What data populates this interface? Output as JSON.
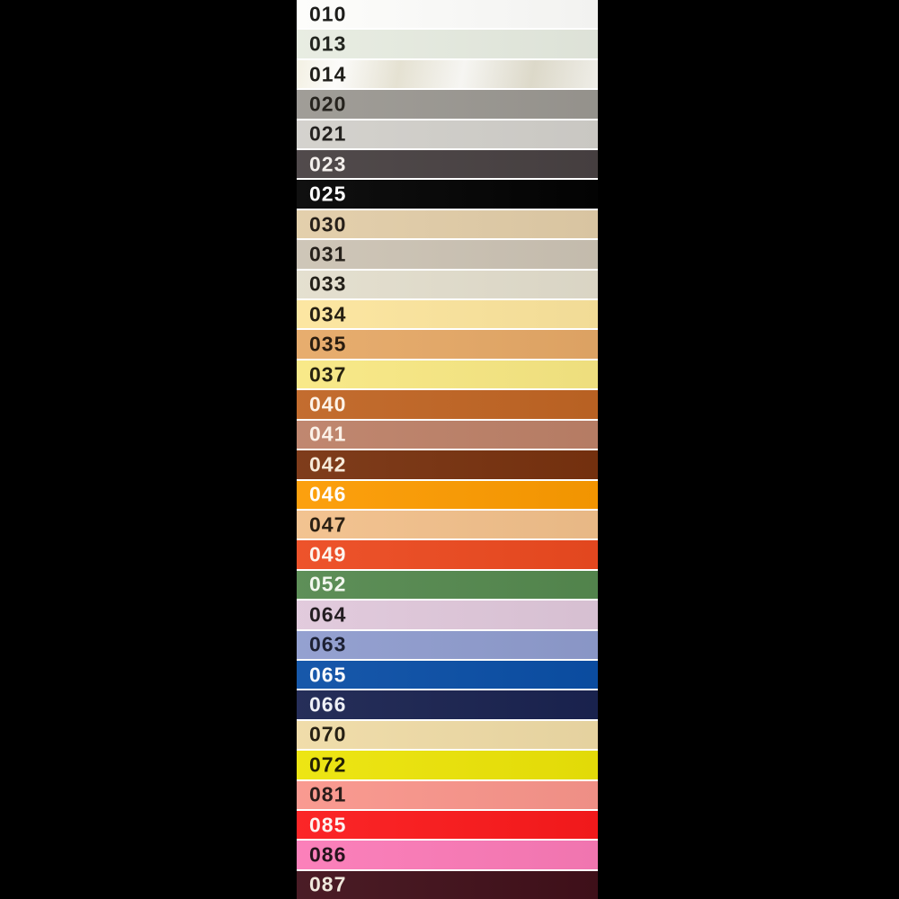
{
  "background_color": "#000000",
  "separator_color": "#ffffff",
  "palette": {
    "description": "color-swatch-card",
    "rows": [
      {
        "code": "010",
        "fill": "#fdfdfb",
        "label_color": "#1d1d1b",
        "sheen": false
      },
      {
        "code": "013",
        "fill": "#e7ece1",
        "label_color": "#22251f",
        "sheen": false
      },
      {
        "code": "014",
        "fill": "#f3f0e2",
        "label_color": "#201f1a",
        "sheen": true
      },
      {
        "code": "020",
        "fill": "#9b9892",
        "label_color": "#26231e",
        "sheen": false
      },
      {
        "code": "021",
        "fill": "#d2d0cb",
        "label_color": "#242220",
        "sheen": false
      },
      {
        "code": "023",
        "fill": "#484142",
        "label_color": "#f3efec",
        "sheen": false
      },
      {
        "code": "025",
        "fill": "#030303",
        "label_color": "#ffffff",
        "sheen": false
      },
      {
        "code": "030",
        "fill": "#e2cda8",
        "label_color": "#272019",
        "sheen": false
      },
      {
        "code": "031",
        "fill": "#ccc3b4",
        "label_color": "#26211b",
        "sheen": false
      },
      {
        "code": "033",
        "fill": "#e3decd",
        "label_color": "#232019",
        "sheen": false
      },
      {
        "code": "034",
        "fill": "#fce59d",
        "label_color": "#262013",
        "sheen": false
      },
      {
        "code": "035",
        "fill": "#e6a967",
        "label_color": "#2b1d10",
        "sheen": false
      },
      {
        "code": "037",
        "fill": "#f8e883",
        "label_color": "#272310",
        "sheen": false
      },
      {
        "code": "040",
        "fill": "#c06524",
        "label_color": "#fdf3e8",
        "sheen": false
      },
      {
        "code": "041",
        "fill": "#bd8168",
        "label_color": "#fbf1e8",
        "sheen": false
      },
      {
        "code": "042",
        "fill": "#78320f",
        "label_color": "#f6ead9",
        "sheen": false
      },
      {
        "code": "046",
        "fill": "#fc9b01",
        "label_color": "#fefefb",
        "sheen": false
      },
      {
        "code": "047",
        "fill": "#f2c08b",
        "label_color": "#2b2014",
        "sheen": false
      },
      {
        "code": "049",
        "fill": "#ec4a20",
        "label_color": "#fdf5ee",
        "sheen": false
      },
      {
        "code": "052",
        "fill": "#55894f",
        "label_color": "#f2f7ee",
        "sheen": false
      },
      {
        "code": "064",
        "fill": "#e0c8db",
        "label_color": "#241e22",
        "sheen": false
      },
      {
        "code": "063",
        "fill": "#8f9cce",
        "label_color": "#1d2133",
        "sheen": false
      },
      {
        "code": "065",
        "fill": "#0b4fa6",
        "label_color": "#f8fafc",
        "sheen": false
      },
      {
        "code": "066",
        "fill": "#1a2350",
        "label_color": "#eef0f6",
        "sheen": false
      },
      {
        "code": "070",
        "fill": "#efdba6",
        "label_color": "#262014",
        "sheen": false
      },
      {
        "code": "072",
        "fill": "#ece408",
        "label_color": "#232105",
        "sheen": false
      },
      {
        "code": "081",
        "fill": "#f9958b",
        "label_color": "#2b1d1a",
        "sheen": false
      },
      {
        "code": "085",
        "fill": "#fb1a1c",
        "label_color": "#fdf2f0",
        "sheen": false
      },
      {
        "code": "086",
        "fill": "#fb7ab7",
        "label_color": "#27141d",
        "sheen": false
      },
      {
        "code": "087",
        "fill": "#41101a",
        "label_color": "#efe8dc",
        "sheen": false
      }
    ]
  }
}
